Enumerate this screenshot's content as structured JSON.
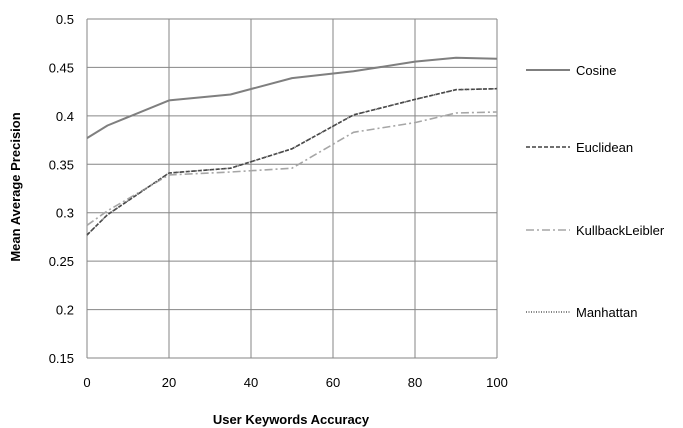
{
  "chart_data": {
    "type": "line",
    "title": "",
    "xlabel": "User Keywords Accuracy",
    "ylabel": "Mean Average Precision",
    "xlim": [
      0,
      100
    ],
    "ylim": [
      0.15,
      0.5
    ],
    "xticks": [
      0,
      20,
      40,
      60,
      80,
      100
    ],
    "yticks": [
      0.15,
      0.2,
      0.25,
      0.3,
      0.35,
      0.4,
      0.45,
      0.5
    ],
    "xtick_labels": [
      "0",
      "20",
      "40",
      "60",
      "80",
      "100"
    ],
    "ytick_labels": [
      "0.15",
      "0.2",
      "0.25",
      "0.3",
      "0.35",
      "0.4",
      "0.45",
      "0.5"
    ],
    "grid": true,
    "legend_position": "right",
    "series": [
      {
        "name": "Cosine",
        "color": "#7f7f7f",
        "style": "solid",
        "x": [
          0,
          5,
          20,
          35,
          50,
          65,
          80,
          90,
          100
        ],
        "y": [
          0.377,
          0.39,
          0.416,
          0.422,
          0.439,
          0.446,
          0.456,
          0.46,
          0.459
        ]
      },
      {
        "name": "Euclidean",
        "color": "#404040",
        "style": "dashed",
        "x": [
          0,
          5,
          20,
          35,
          50,
          65,
          80,
          90,
          100
        ],
        "y": [
          0.277,
          0.298,
          0.341,
          0.346,
          0.366,
          0.401,
          0.417,
          0.427,
          0.428
        ]
      },
      {
        "name": "KullbackLeibler",
        "color": "#a6a6a6",
        "style": "dashdot",
        "x": [
          0,
          5,
          20,
          35,
          50,
          65,
          80,
          90,
          100
        ],
        "y": [
          0.287,
          0.302,
          0.339,
          0.342,
          0.346,
          0.383,
          0.393,
          0.403,
          0.404
        ]
      },
      {
        "name": "Manhattan",
        "color": "#595959",
        "style": "dotted",
        "x": [
          0,
          5,
          20,
          35,
          50,
          65,
          80,
          90,
          100
        ],
        "y": [
          0.277,
          0.298,
          0.341,
          0.346,
          0.366,
          0.401,
          0.417,
          0.427,
          0.428
        ]
      }
    ]
  }
}
